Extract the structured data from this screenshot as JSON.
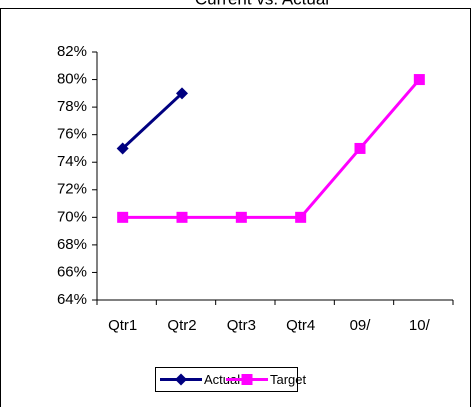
{
  "chart_data": {
    "type": "line",
    "title": "Current vs. Actual",
    "categories": [
      "Qtr1",
      "Qtr2",
      "Qtr3",
      "Qtr4",
      "09/",
      "10/"
    ],
    "series": [
      {
        "name": "Actual",
        "color": "#000080",
        "marker": "diamond",
        "values": [
          75,
          79,
          null,
          null,
          null,
          null
        ]
      },
      {
        "name": "Target",
        "color": "#ff00ff",
        "marker": "square",
        "values": [
          70,
          70,
          70,
          70,
          75,
          80
        ]
      }
    ],
    "ylim": [
      64,
      82
    ],
    "yticks": [
      {
        "value": 64,
        "label": "64%"
      },
      {
        "value": 66,
        "label": "66%"
      },
      {
        "value": 68,
        "label": "68%"
      },
      {
        "value": 70,
        "label": "70%"
      },
      {
        "value": 72,
        "label": "72%"
      },
      {
        "value": 74,
        "label": "74%"
      },
      {
        "value": 76,
        "label": "76%"
      },
      {
        "value": 78,
        "label": "78%"
      },
      {
        "value": 80,
        "label": "80%"
      },
      {
        "value": 82,
        "label": "82%"
      }
    ],
    "legend": "bottom"
  }
}
